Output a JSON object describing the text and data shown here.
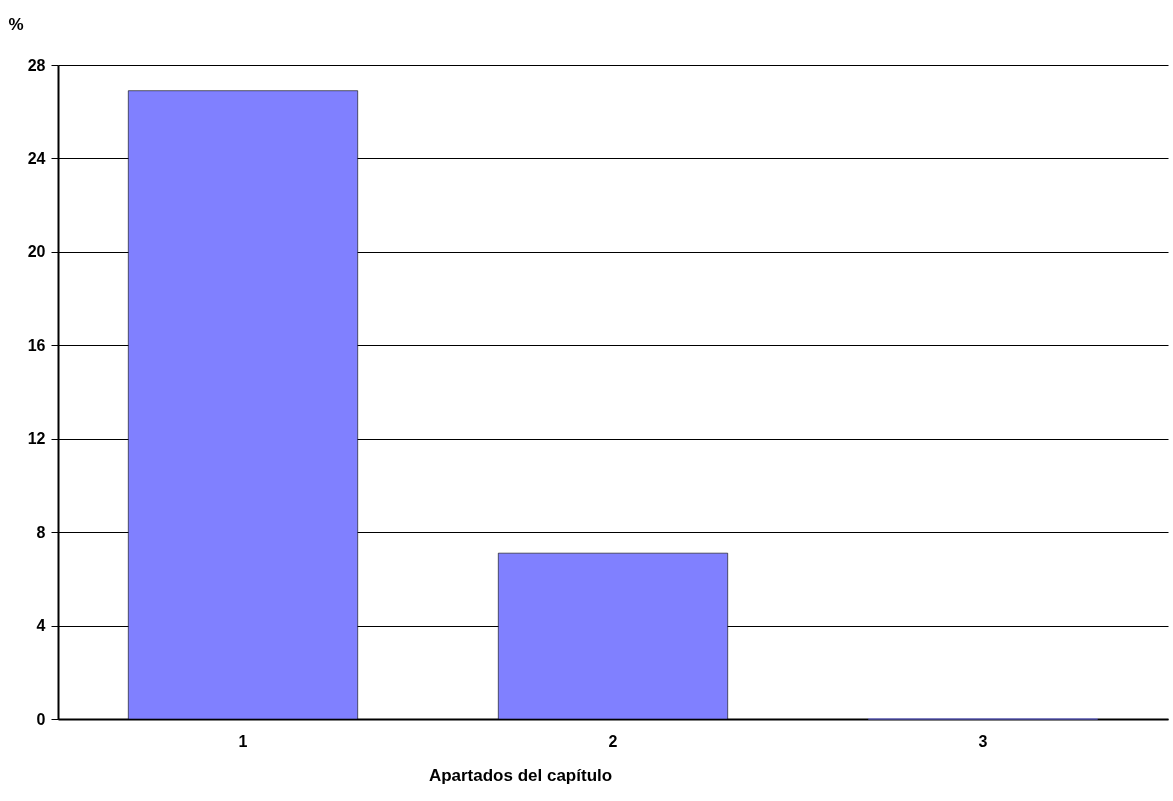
{
  "chart_data": {
    "type": "bar",
    "xlabel": "Apartados del capítulo",
    "ylabel": "%",
    "categories": [
      "1",
      "2",
      "3"
    ],
    "values": [
      26.9,
      7.1,
      0
    ],
    "color": "#8080ff",
    "ylim": [
      0,
      28
    ],
    "yticks": [
      0,
      4,
      8,
      12,
      16,
      20,
      24,
      28
    ],
    "grid": "y"
  }
}
